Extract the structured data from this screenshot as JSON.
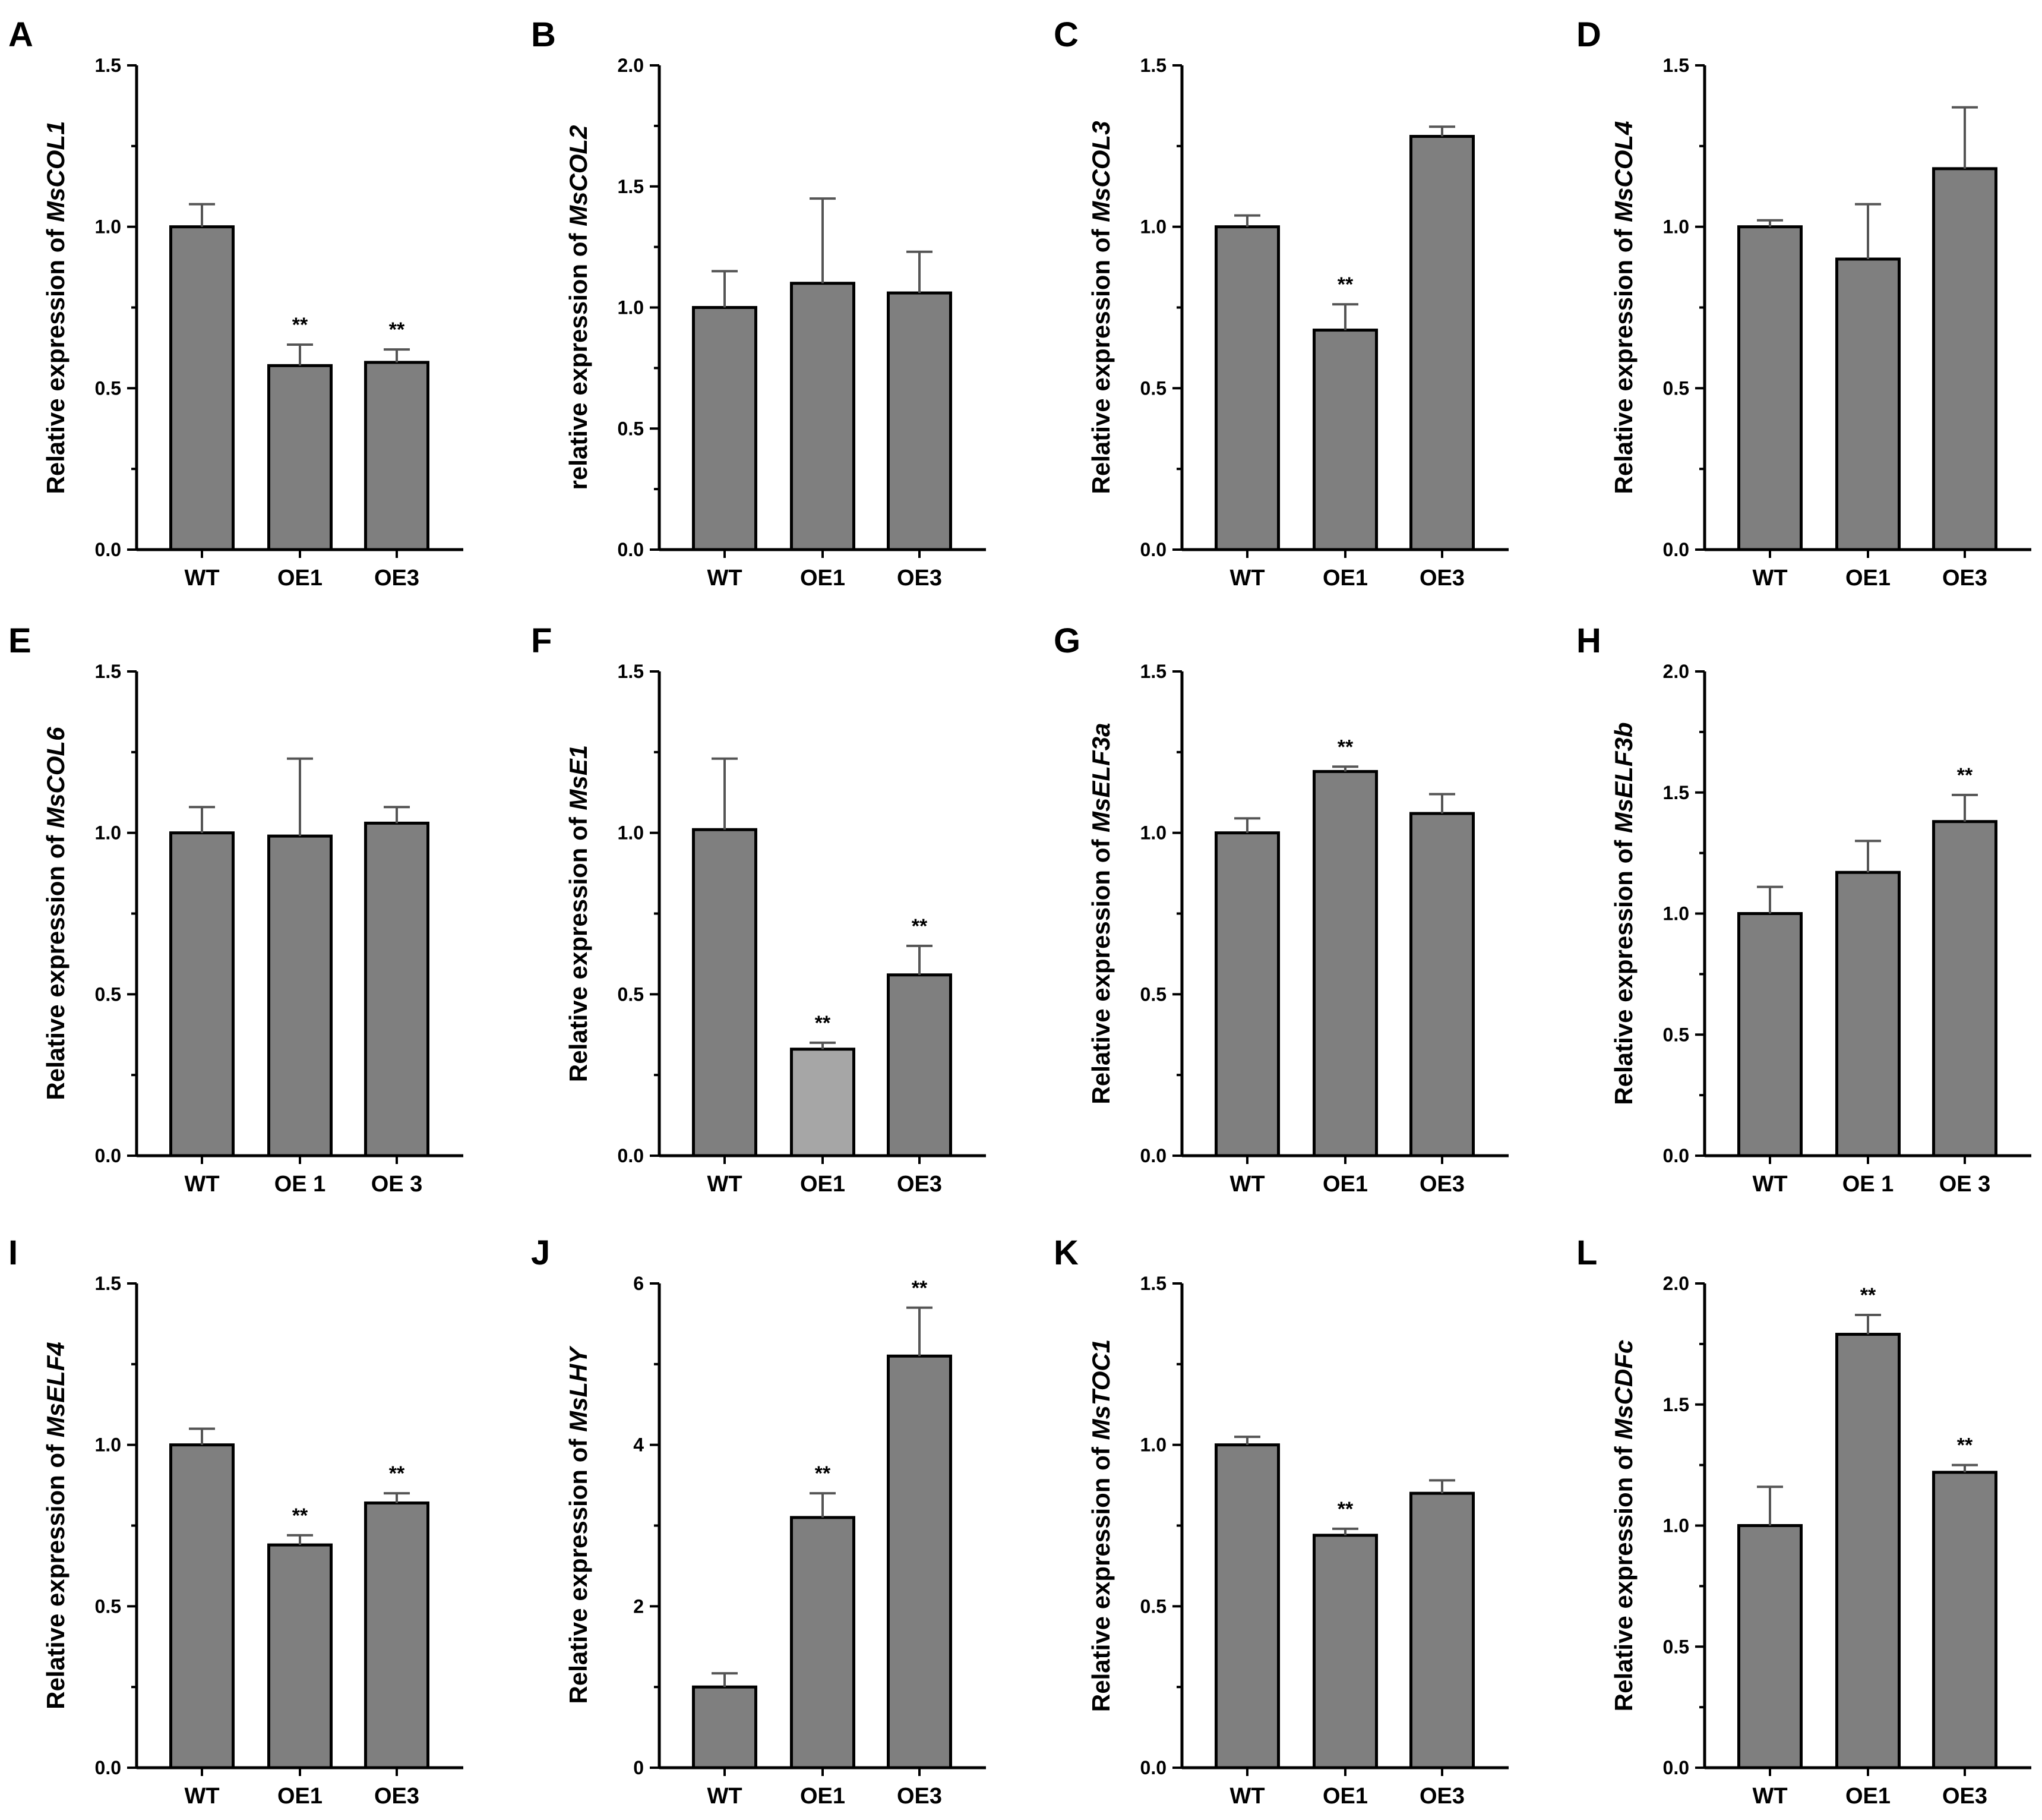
{
  "figure": {
    "bar_color": "#7f7f7f",
    "bar_color_alt": "#a6a6a6",
    "axis_color": "#000000",
    "error_color": "#555555"
  },
  "chart_data": [
    {
      "panel": "A",
      "type": "bar",
      "ylabel_prefix": "Relative expression of ",
      "gene": "MsCOL1",
      "categories": [
        "WT",
        "OE1",
        "OE3"
      ],
      "values": [
        1.0,
        0.57,
        0.58
      ],
      "errors": [
        0.07,
        0.065,
        0.04
      ],
      "significance": [
        "",
        "**",
        "**"
      ],
      "ylim": [
        0,
        1.5
      ],
      "yticks": [
        "0.0",
        "0.5",
        "1.0",
        "1.5"
      ]
    },
    {
      "panel": "B",
      "type": "bar",
      "ylabel_prefix": "relative expression of ",
      "gene": "MsCOL2",
      "categories": [
        "WT",
        "OE1",
        "OE3"
      ],
      "values": [
        1.0,
        1.1,
        1.06
      ],
      "errors": [
        0.15,
        0.35,
        0.17
      ],
      "significance": [
        "",
        "",
        ""
      ],
      "ylim": [
        0,
        2.0
      ],
      "yticks": [
        "0.0",
        "0.5",
        "1.0",
        "1.5",
        "2.0"
      ]
    },
    {
      "panel": "C",
      "type": "bar",
      "ylabel_prefix": "Relative expression of ",
      "gene": "MsCOL3",
      "categories": [
        "WT",
        "OE1",
        "OE3"
      ],
      "values": [
        1.0,
        0.68,
        1.28
      ],
      "errors": [
        0.035,
        0.08,
        0.03
      ],
      "significance": [
        "",
        "**",
        ""
      ],
      "ylim": [
        0,
        1.5
      ],
      "yticks": [
        "0.0",
        "0.5",
        "1.0",
        "1.5"
      ]
    },
    {
      "panel": "D",
      "type": "bar",
      "ylabel_prefix": "Relative expression of ",
      "gene": "MsCOL4",
      "categories": [
        "WT",
        "OE1",
        "OE3"
      ],
      "values": [
        1.0,
        0.9,
        1.18
      ],
      "errors": [
        0.02,
        0.17,
        0.19
      ],
      "significance": [
        "",
        "",
        ""
      ],
      "ylim": [
        0,
        1.5
      ],
      "yticks": [
        "0.0",
        "0.5",
        "1.0",
        "1.5"
      ]
    },
    {
      "panel": "E",
      "type": "bar",
      "ylabel_prefix": "Relative expression of ",
      "gene": "MsCOL6",
      "categories": [
        "WT",
        "OE 1",
        "OE 3"
      ],
      "values": [
        1.0,
        0.99,
        1.03
      ],
      "errors": [
        0.08,
        0.24,
        0.05
      ],
      "significance": [
        "",
        "",
        ""
      ],
      "ylim": [
        0,
        1.5
      ],
      "yticks": [
        "0.0",
        "0.5",
        "1.0",
        "1.5"
      ]
    },
    {
      "panel": "F",
      "type": "bar",
      "ylabel_prefix": "Relative expression of ",
      "gene": "MsE1",
      "categories": [
        "WT",
        "OE1",
        "OE3"
      ],
      "values": [
        1.01,
        0.33,
        0.56
      ],
      "errors": [
        0.22,
        0.02,
        0.09
      ],
      "significance": [
        "",
        "**",
        "**"
      ],
      "ylim": [
        0,
        1.5
      ],
      "yticks": [
        "0.0",
        "0.5",
        "1.0",
        "1.5"
      ]
    },
    {
      "panel": "G",
      "type": "bar",
      "ylabel_prefix": "Relative expression of ",
      "gene": "MsELF3a",
      "categories": [
        "WT",
        "OE1",
        "OE3"
      ],
      "values": [
        1.0,
        1.19,
        1.06
      ],
      "errors": [
        0.045,
        0.015,
        0.06
      ],
      "significance": [
        "",
        "**",
        ""
      ],
      "ylim": [
        0,
        1.5
      ],
      "yticks": [
        "0.0",
        "0.5",
        "1.0",
        "1.5"
      ]
    },
    {
      "panel": "H",
      "type": "bar",
      "ylabel_prefix": "Relative expression of ",
      "gene": "MsELF3b",
      "categories": [
        "WT",
        "OE 1",
        "OE 3"
      ],
      "values": [
        1.0,
        1.17,
        1.38
      ],
      "errors": [
        0.11,
        0.13,
        0.11
      ],
      "significance": [
        "",
        "",
        "**"
      ],
      "ylim": [
        0,
        2.0
      ],
      "yticks": [
        "0.0",
        "0.5",
        "1.0",
        "1.5",
        "2.0"
      ]
    },
    {
      "panel": "I",
      "type": "bar",
      "ylabel_prefix": "Relative expression of ",
      "gene": "MsELF4",
      "categories": [
        "WT",
        "OE1",
        "OE3"
      ],
      "values": [
        1.0,
        0.69,
        0.82
      ],
      "errors": [
        0.05,
        0.03,
        0.03
      ],
      "significance": [
        "",
        "**",
        "**"
      ],
      "ylim": [
        0,
        1.5
      ],
      "yticks": [
        "0.0",
        "0.5",
        "1.0",
        "1.5"
      ]
    },
    {
      "panel": "J",
      "type": "bar",
      "ylabel_prefix": "Relative expression of ",
      "gene": "MsLHY",
      "categories": [
        "WT",
        "OE1",
        "OE3"
      ],
      "values": [
        1.0,
        3.1,
        5.1
      ],
      "errors": [
        0.17,
        0.3,
        0.6
      ],
      "significance": [
        "",
        "**",
        "**"
      ],
      "ylim": [
        0,
        6
      ],
      "yticks": [
        "0",
        "2",
        "4",
        "6"
      ]
    },
    {
      "panel": "K",
      "type": "bar",
      "ylabel_prefix": "Relative expression of ",
      "gene": "MsTOC1",
      "categories": [
        "WT",
        "OE1",
        "OE3"
      ],
      "values": [
        1.0,
        0.72,
        0.85
      ],
      "errors": [
        0.025,
        0.02,
        0.04
      ],
      "significance": [
        "",
        "**",
        ""
      ],
      "ylim": [
        0,
        1.5
      ],
      "yticks": [
        "0.0",
        "0.5",
        "1.0",
        "1.5"
      ]
    },
    {
      "panel": "L",
      "type": "bar",
      "ylabel_prefix": "Relative expression of ",
      "gene": "MsCDFc",
      "categories": [
        "WT",
        "OE1",
        "OE3"
      ],
      "values": [
        1.0,
        1.79,
        1.22
      ],
      "errors": [
        0.16,
        0.08,
        0.03
      ],
      "significance": [
        "",
        "**",
        "**"
      ],
      "ylim": [
        0,
        2.0
      ],
      "yticks": [
        "0.0",
        "0.5",
        "1.0",
        "1.5",
        "2.0"
      ]
    }
  ]
}
